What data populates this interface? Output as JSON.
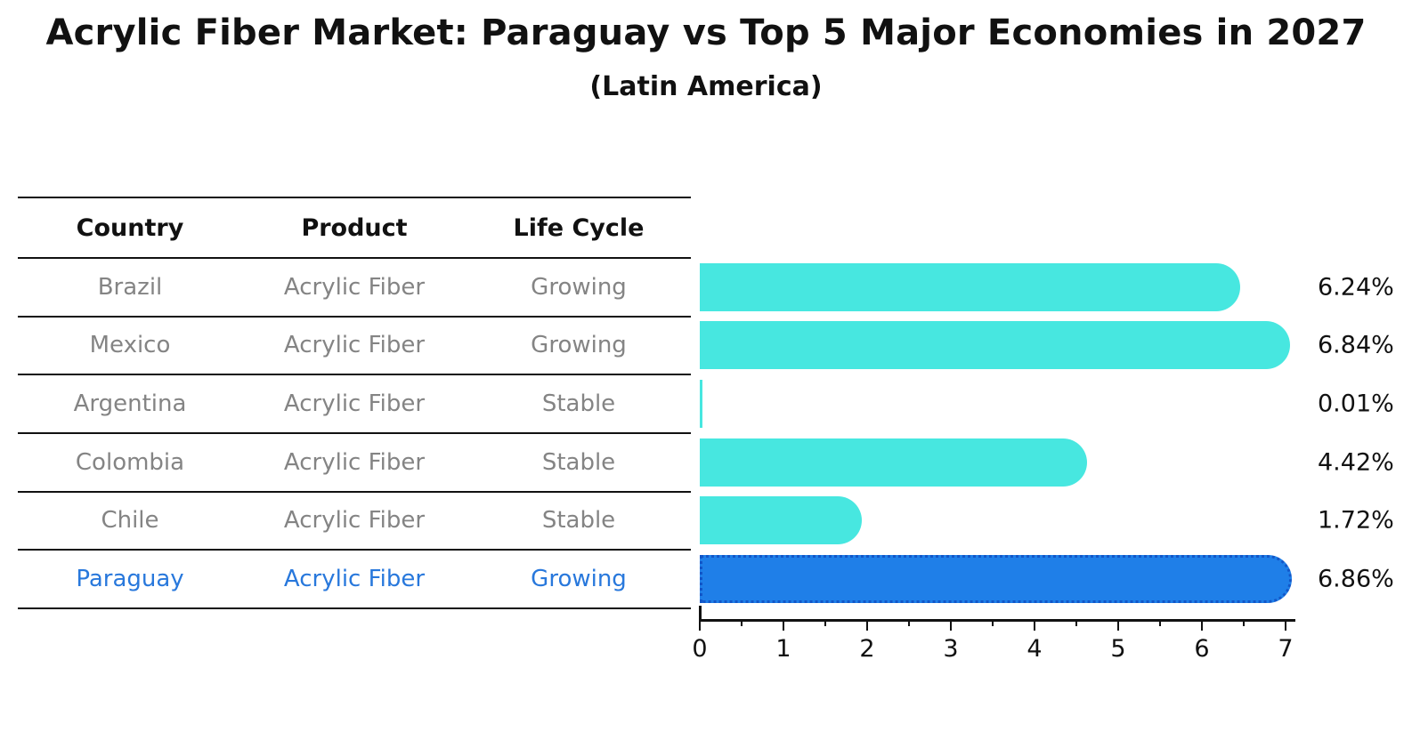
{
  "chart_data": {
    "type": "bar",
    "orientation": "horizontal",
    "title": "Acrylic Fiber Market: Paraguay vs Top 5 Major Economies in 2027",
    "subtitle": "(Latin America)",
    "categories": [
      "Brazil",
      "Mexico",
      "Argentina",
      "Colombia",
      "Chile",
      "Paraguay"
    ],
    "values": [
      6.24,
      6.84,
      0.01,
      4.42,
      1.72,
      6.86
    ],
    "value_labels": [
      "6.24%",
      "6.84%",
      "0.01%",
      "4.42%",
      "1.72%",
      "6.86%"
    ],
    "xlabel": "",
    "ylabel": "",
    "xlim": [
      0,
      7.2
    ],
    "x_ticks": [
      0,
      1,
      2,
      3,
      4,
      5,
      6,
      7
    ],
    "minor_tick_interval": 0.5,
    "grid": false,
    "legend_position": "none",
    "bar_color": "#47E7E0",
    "highlight_bar_color": "#1F7FE8",
    "highlight_border_color": "#1256C8",
    "highlight_index": 5
  },
  "table": {
    "headers": [
      "Country",
      "Product",
      "Life Cycle"
    ],
    "rows": [
      {
        "country": "Brazil",
        "product": "Acrylic Fiber",
        "life_cycle": "Growing",
        "highlighted": false
      },
      {
        "country": "Mexico",
        "product": "Acrylic Fiber",
        "life_cycle": "Growing",
        "highlighted": false
      },
      {
        "country": "Argentina",
        "product": "Acrylic Fiber",
        "life_cycle": "Stable",
        "highlighted": false
      },
      {
        "country": "Colombia",
        "product": "Acrylic Fiber",
        "life_cycle": "Stable",
        "highlighted": false
      },
      {
        "country": "Chile",
        "product": "Acrylic Fiber",
        "life_cycle": "Stable",
        "highlighted": false
      },
      {
        "country": "Paraguay",
        "product": "Acrylic Fiber",
        "life_cycle": "Growing",
        "highlighted": true
      }
    ]
  },
  "colors": {
    "background": "#FFFFFF",
    "text_primary": "#111111",
    "text_muted": "#848484",
    "highlight_text": "#2878DC"
  }
}
